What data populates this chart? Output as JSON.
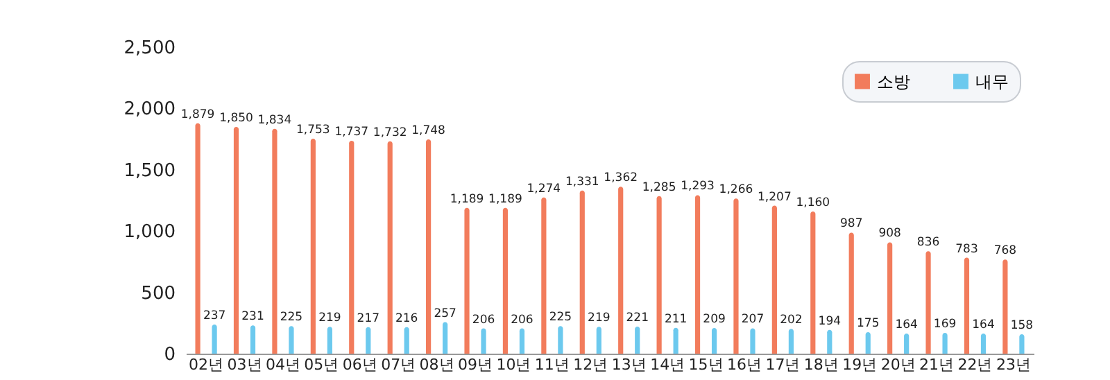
{
  "chart_data": {
    "type": "bar",
    "categories": [
      "02년",
      "03년",
      "04년",
      "05년",
      "06년",
      "07년",
      "08년",
      "09년",
      "10년",
      "11년",
      "12년",
      "13년",
      "14년",
      "15년",
      "16년",
      "17년",
      "18년",
      "19년",
      "20년",
      "21년",
      "22년",
      "23년"
    ],
    "series": [
      {
        "name": "소방",
        "color": "#f27c5c",
        "values": [
          1879,
          1850,
          1834,
          1753,
          1737,
          1732,
          1748,
          1189,
          1189,
          1274,
          1331,
          1362,
          1285,
          1293,
          1266,
          1207,
          1160,
          987,
          908,
          836,
          783,
          768
        ],
        "value_labels": [
          "1,879",
          "1,850",
          "1,834",
          "1,753",
          "1,737",
          "1,732",
          "1,748",
          "1,189",
          "1,189",
          "1,274",
          "1,331",
          "1,362",
          "1,285",
          "1,293",
          "1,266",
          "1,207",
          "1,160",
          "987",
          "908",
          "836",
          "783",
          "768"
        ]
      },
      {
        "name": "내무",
        "color": "#6cc9ee",
        "values": [
          237,
          231,
          225,
          219,
          217,
          216,
          257,
          206,
          206,
          225,
          219,
          221,
          211,
          209,
          207,
          202,
          194,
          175,
          164,
          169,
          164,
          158
        ],
        "value_labels": [
          "237",
          "231",
          "225",
          "219",
          "217",
          "216",
          "257",
          "206",
          "206",
          "225",
          "219",
          "221",
          "211",
          "209",
          "207",
          "202",
          "194",
          "175",
          "164",
          "169",
          "164",
          "158"
        ]
      }
    ],
    "ylim": [
      0,
      2500
    ],
    "yticks": [
      0,
      {
        "value": 500,
        "label": "500"
      },
      {
        "value": 1000,
        "label": "1,000"
      },
      {
        "value": 1500,
        "label": "1,500"
      },
      {
        "value": 2000,
        "label": "2,000"
      },
      {
        "value": 2500,
        "label": "2,500"
      }
    ],
    "legend": "top right",
    "grid": false
  }
}
